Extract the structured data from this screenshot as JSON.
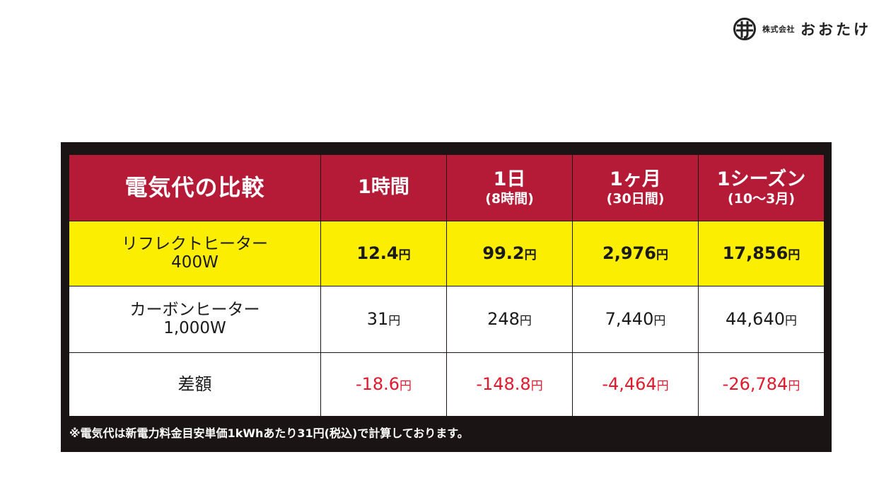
{
  "logo": {
    "corp": "株式会社",
    "name": "おおたけ"
  },
  "header": {
    "title": "電気代の比較",
    "cols": [
      {
        "main": "1時間",
        "sub": ""
      },
      {
        "main": "1日",
        "sub": "(8時間)"
      },
      {
        "main": "1ヶ月",
        "sub": "(30日間)"
      },
      {
        "main": "1シーズン",
        "sub": "(10〜3月)"
      }
    ]
  },
  "rows": [
    {
      "label1": "リフレクトヒーター",
      "label2": "400W",
      "values": [
        "12.4",
        "99.2",
        "2,976",
        "17,856"
      ],
      "unit": "円"
    },
    {
      "label1": "カーボンヒーター",
      "label2": "1,000W",
      "values": [
        "31",
        "248",
        "7,440",
        "44,640"
      ],
      "unit": "円"
    },
    {
      "label1": "差額",
      "values": [
        "-18.6",
        "-148.8",
        "-4,464",
        "-26,784"
      ],
      "unit": "円"
    }
  ],
  "note": "※電気代は新電力料金目安単価1kWhあたり31円(税込)で計算しております。",
  "colors": {
    "header_red": "#b51a36",
    "highlight_yellow": "#fcee00",
    "diff_red": "#e3192d",
    "panel_dark": "#1a1514"
  }
}
